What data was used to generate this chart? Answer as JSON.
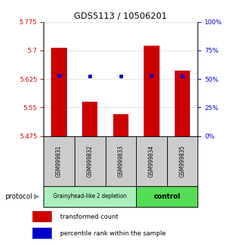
{
  "title": "GDS5113 / 10506201",
  "samples": [
    "GSM999831",
    "GSM999832",
    "GSM999833",
    "GSM999834",
    "GSM999835"
  ],
  "bar_values": [
    5.708,
    5.565,
    5.533,
    5.713,
    5.647
  ],
  "percentile_values": [
    5.635,
    5.633,
    5.633,
    5.635,
    5.633
  ],
  "bar_base": 5.475,
  "ylim": [
    5.475,
    5.775
  ],
  "yticks_left": [
    5.475,
    5.55,
    5.625,
    5.7,
    5.775
  ],
  "yticks_right": [
    0,
    25,
    50,
    75,
    100
  ],
  "bar_color": "#cc0000",
  "percentile_color": "#0000cc",
  "group1_label": "Grainyhead-like 2 depletion",
  "group2_label": "control",
  "group1_color": "#aaeebb",
  "group2_color": "#55dd55",
  "protocol_label": "protocol",
  "legend_bar_label": "transformed count",
  "legend_pct_label": "percentile rank within the sample",
  "left_tick_color": "#cc0000",
  "right_tick_color": "#0000cc",
  "grid_color": "#aaaaaa",
  "sample_box_color": "#cccccc"
}
